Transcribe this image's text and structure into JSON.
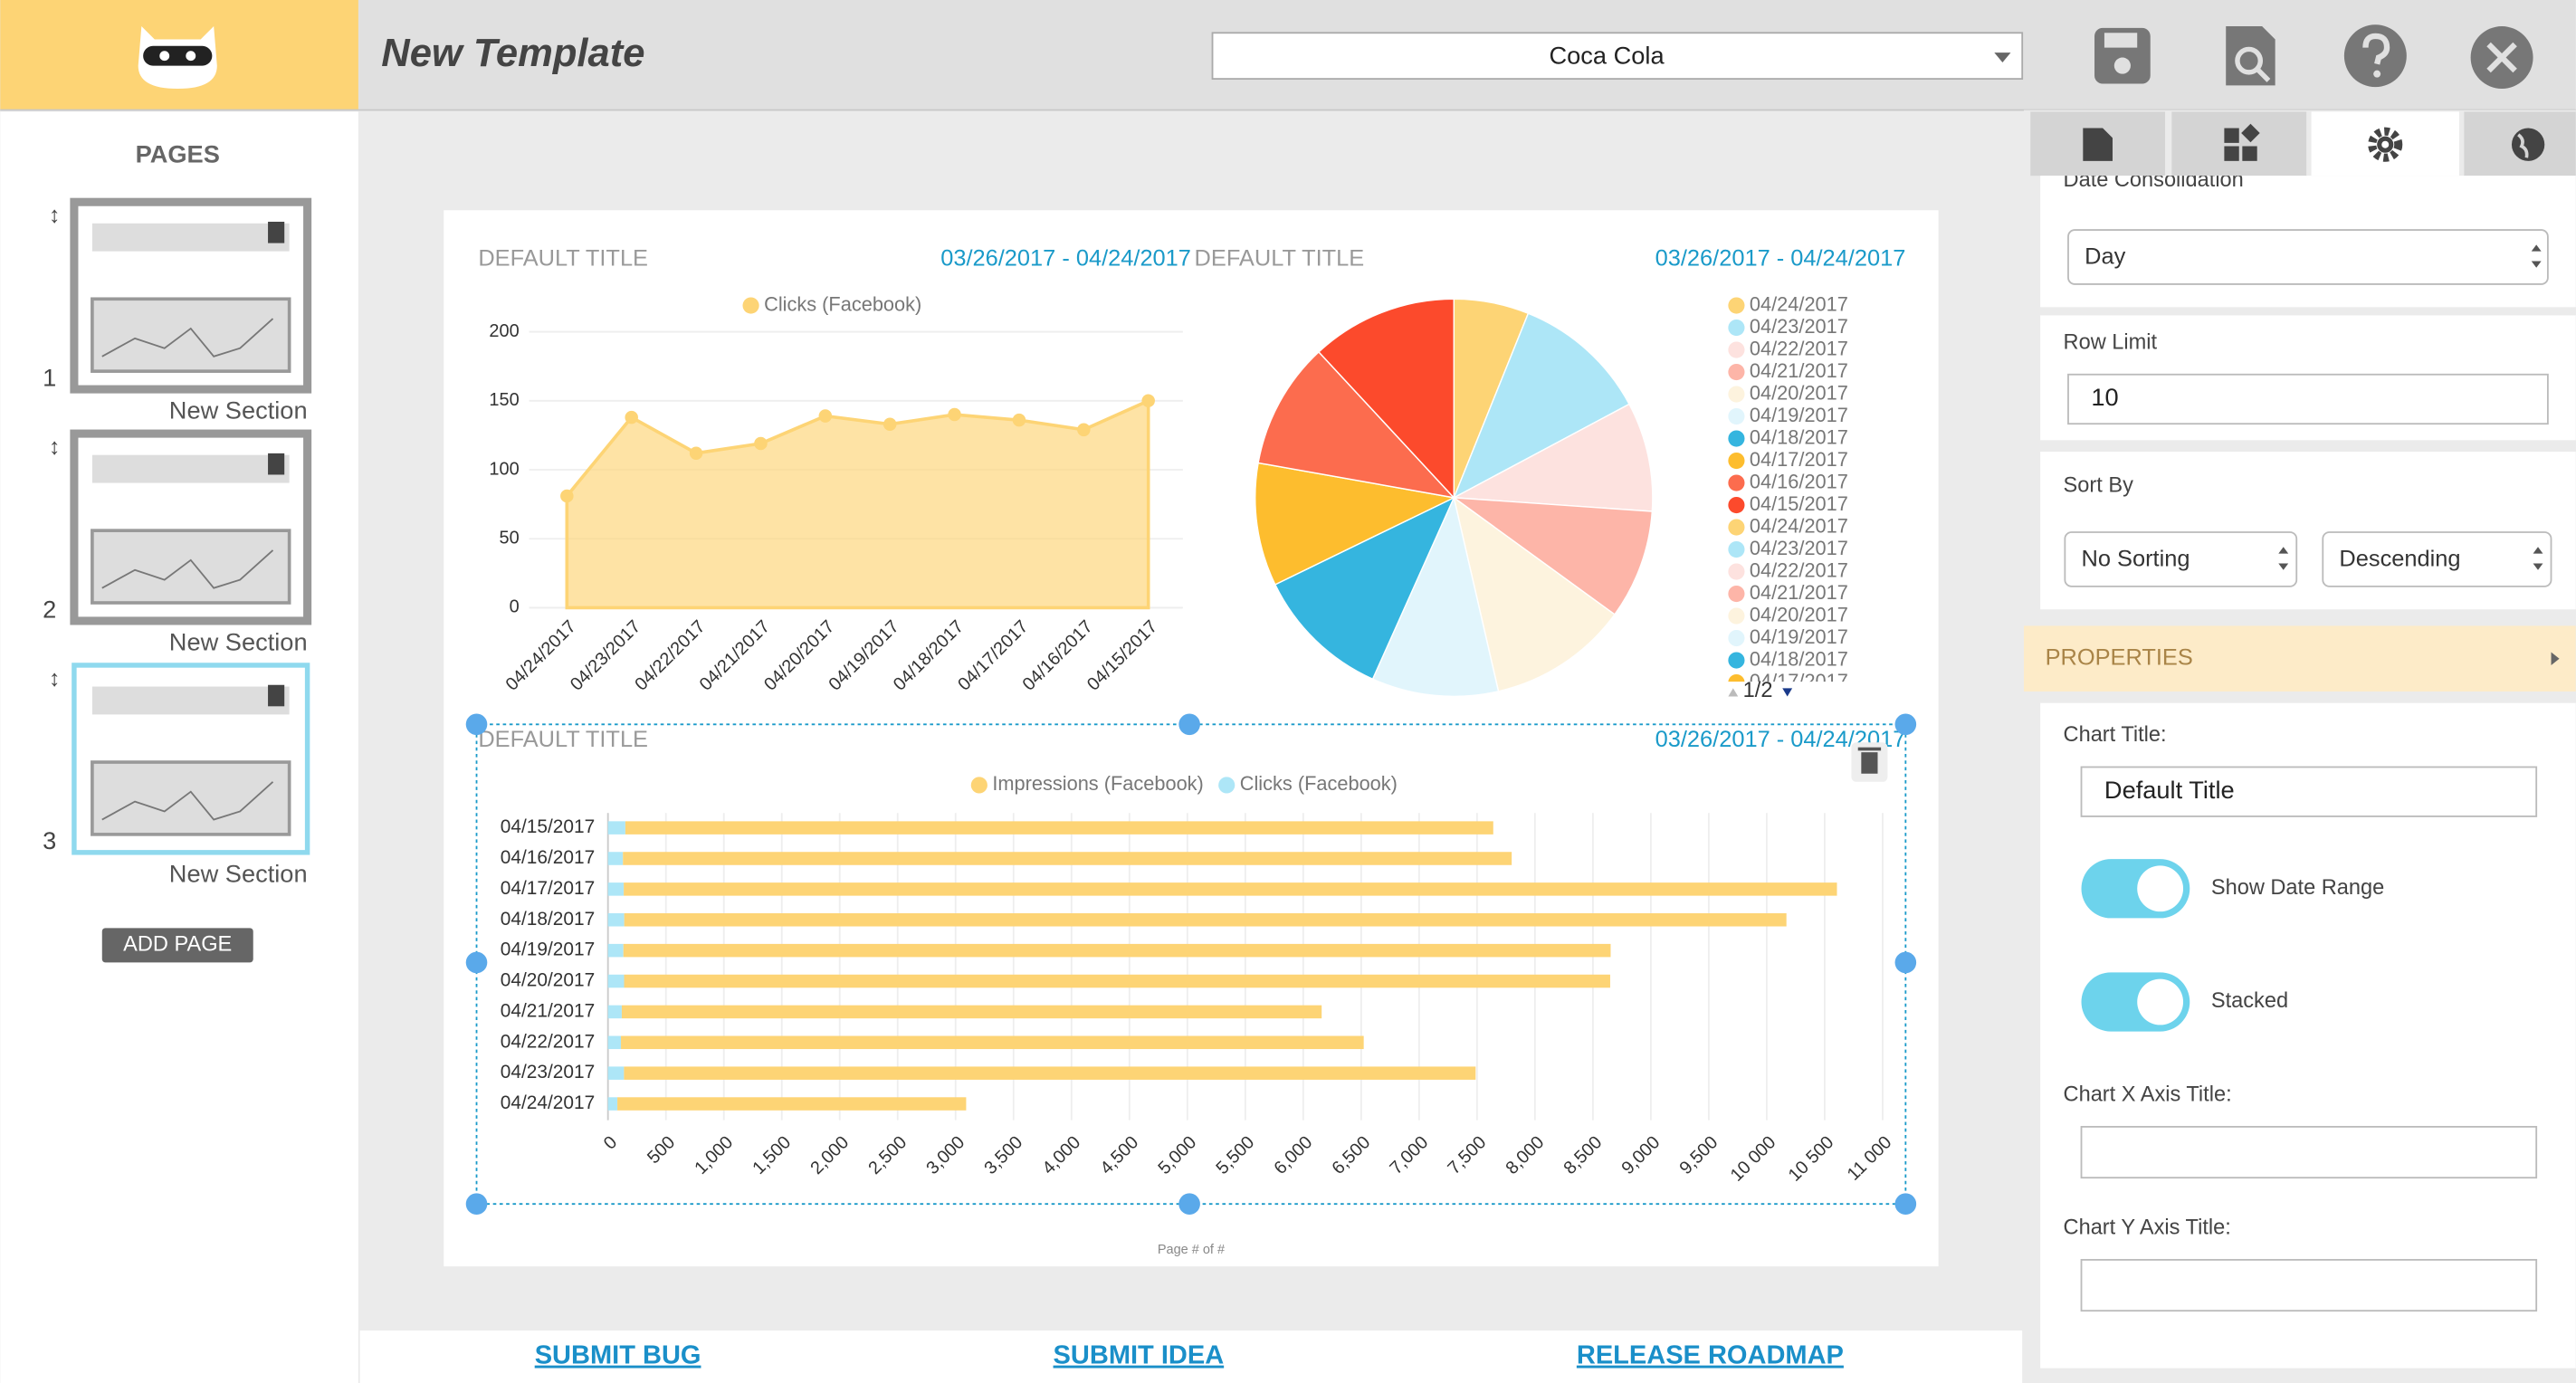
{
  "header": {
    "title": "New Template",
    "account": "Coca Cola"
  },
  "sidebar": {
    "title": "PAGES",
    "pages": [
      {
        "number": 1,
        "name": "New Section"
      },
      {
        "number": 2,
        "name": "New Section"
      },
      {
        "number": 3,
        "name": "New Section"
      }
    ],
    "add_button": "ADD PAGE"
  },
  "chart_data": [
    {
      "type": "area",
      "title": "DEFAULT TITLE",
      "subtitle": "03/26/2017 - 04/24/2017",
      "categories": [
        "04/24/2017",
        "04/23/2017",
        "04/22/2017",
        "04/21/2017",
        "04/20/2017",
        "04/19/2017",
        "04/18/2017",
        "04/17/2017",
        "04/16/2017",
        "04/15/2017"
      ],
      "series": [
        {
          "name": "Clicks (Facebook)",
          "color": "#fdd475",
          "values": [
            81,
            138,
            112,
            119,
            139,
            133,
            140,
            136,
            129,
            150
          ]
        }
      ],
      "ylim": [
        0,
        200
      ],
      "yticks": [
        0,
        50,
        100,
        150,
        200
      ],
      "grid": true
    },
    {
      "type": "pie",
      "title": "DEFAULT TITLE",
      "subtitle": "03/26/2017 - 04/24/2017",
      "categories": [
        "04/24/2017",
        "04/23/2017",
        "04/22/2017",
        "04/21/2017",
        "04/20/2017",
        "04/19/2017",
        "04/18/2017",
        "04/17/2017",
        "04/16/2017",
        "04/15/2017"
      ],
      "values": [
        6.1,
        11.1,
        8.9,
        8.9,
        11.4,
        10.3,
        11.1,
        10,
        10.3,
        11.9
      ],
      "colors": [
        "#fdd475",
        "#ade6f7",
        "#fde2df",
        "#fdb5a8",
        "#fdf3de",
        "#e1f5fc",
        "#35b5df",
        "#fdbd2e",
        "#fc6c4e",
        "#fc4a2c"
      ],
      "legend_page": "1/2"
    },
    {
      "type": "bar",
      "orientation": "horizontal",
      "stacked": true,
      "title": "DEFAULT TITLE",
      "subtitle": "03/26/2017 - 04/24/2017",
      "categories": [
        "04/15/2017",
        "04/16/2017",
        "04/17/2017",
        "04/18/2017",
        "04/19/2017",
        "04/20/2017",
        "04/21/2017",
        "04/22/2017",
        "04/23/2017",
        "04/24/2017"
      ],
      "series": [
        {
          "name": "Impressions (Facebook)",
          "color": "#fdd475",
          "values": [
            7490,
            7670,
            10470,
            10030,
            8520,
            8510,
            6040,
            6410,
            7350,
            3010
          ]
        },
        {
          "name": "Clicks (Facebook)",
          "color": "#ade6f7",
          "values": [
            150,
            129,
            136,
            140,
            133,
            139,
            119,
            112,
            138,
            81
          ]
        }
      ],
      "xlim": [
        0,
        11000
      ],
      "xticks": [
        0,
        500,
        {
          "value": 1000,
          "label": "1,000"
        },
        {
          "value": 1500,
          "label": "1,500"
        },
        {
          "value": 2000,
          "label": "2,000"
        },
        {
          "value": 2500,
          "label": "2,500"
        },
        {
          "value": 3000,
          "label": "3,000"
        },
        {
          "value": 3500,
          "label": "3,500"
        },
        {
          "value": 4000,
          "label": "4,000"
        },
        {
          "value": 4500,
          "label": "4,500"
        },
        {
          "value": 5000,
          "label": "5,000"
        },
        {
          "value": 5500,
          "label": "5,500"
        },
        {
          "value": 6000,
          "label": "6,000"
        },
        {
          "value": 6500,
          "label": "6,500"
        },
        {
          "value": 7000,
          "label": "7,000"
        },
        {
          "value": 7500,
          "label": "7,500"
        },
        {
          "value": 8000,
          "label": "8,000"
        },
        {
          "value": 8500,
          "label": "8,500"
        },
        {
          "value": 9000,
          "label": "9,000"
        },
        {
          "value": 9500,
          "label": "9,500"
        },
        {
          "value": 10000,
          "label": "10 000"
        },
        {
          "value": 10500,
          "label": "10 500"
        },
        {
          "value": 11000,
          "label": "11 000"
        }
      ],
      "grid": true
    }
  ],
  "page_footer": "Page # of #",
  "settings": {
    "date_consolidation_label": "Date Consolidation",
    "date_consolidation": "Day",
    "row_limit_label": "Row Limit",
    "row_limit": 10,
    "sort_by_label": "Sort By",
    "sort": "No Sorting",
    "order": "Descending",
    "properties": "PROPERTIES",
    "chart_title_label": "Chart Title:",
    "chart_title": "Default Title",
    "show_date_range": {
      "label": "Show Date Range",
      "on": true
    },
    "stacked": {
      "label": "Stacked",
      "on": true
    },
    "x_axis_title_label": "Chart X Axis Title:",
    "y_axis_title_label": "Chart Y Axis Title:"
  },
  "footer_links": [
    "SUBMIT BUG",
    "SUBMIT IDEA",
    "RELEASE ROADMAP"
  ]
}
